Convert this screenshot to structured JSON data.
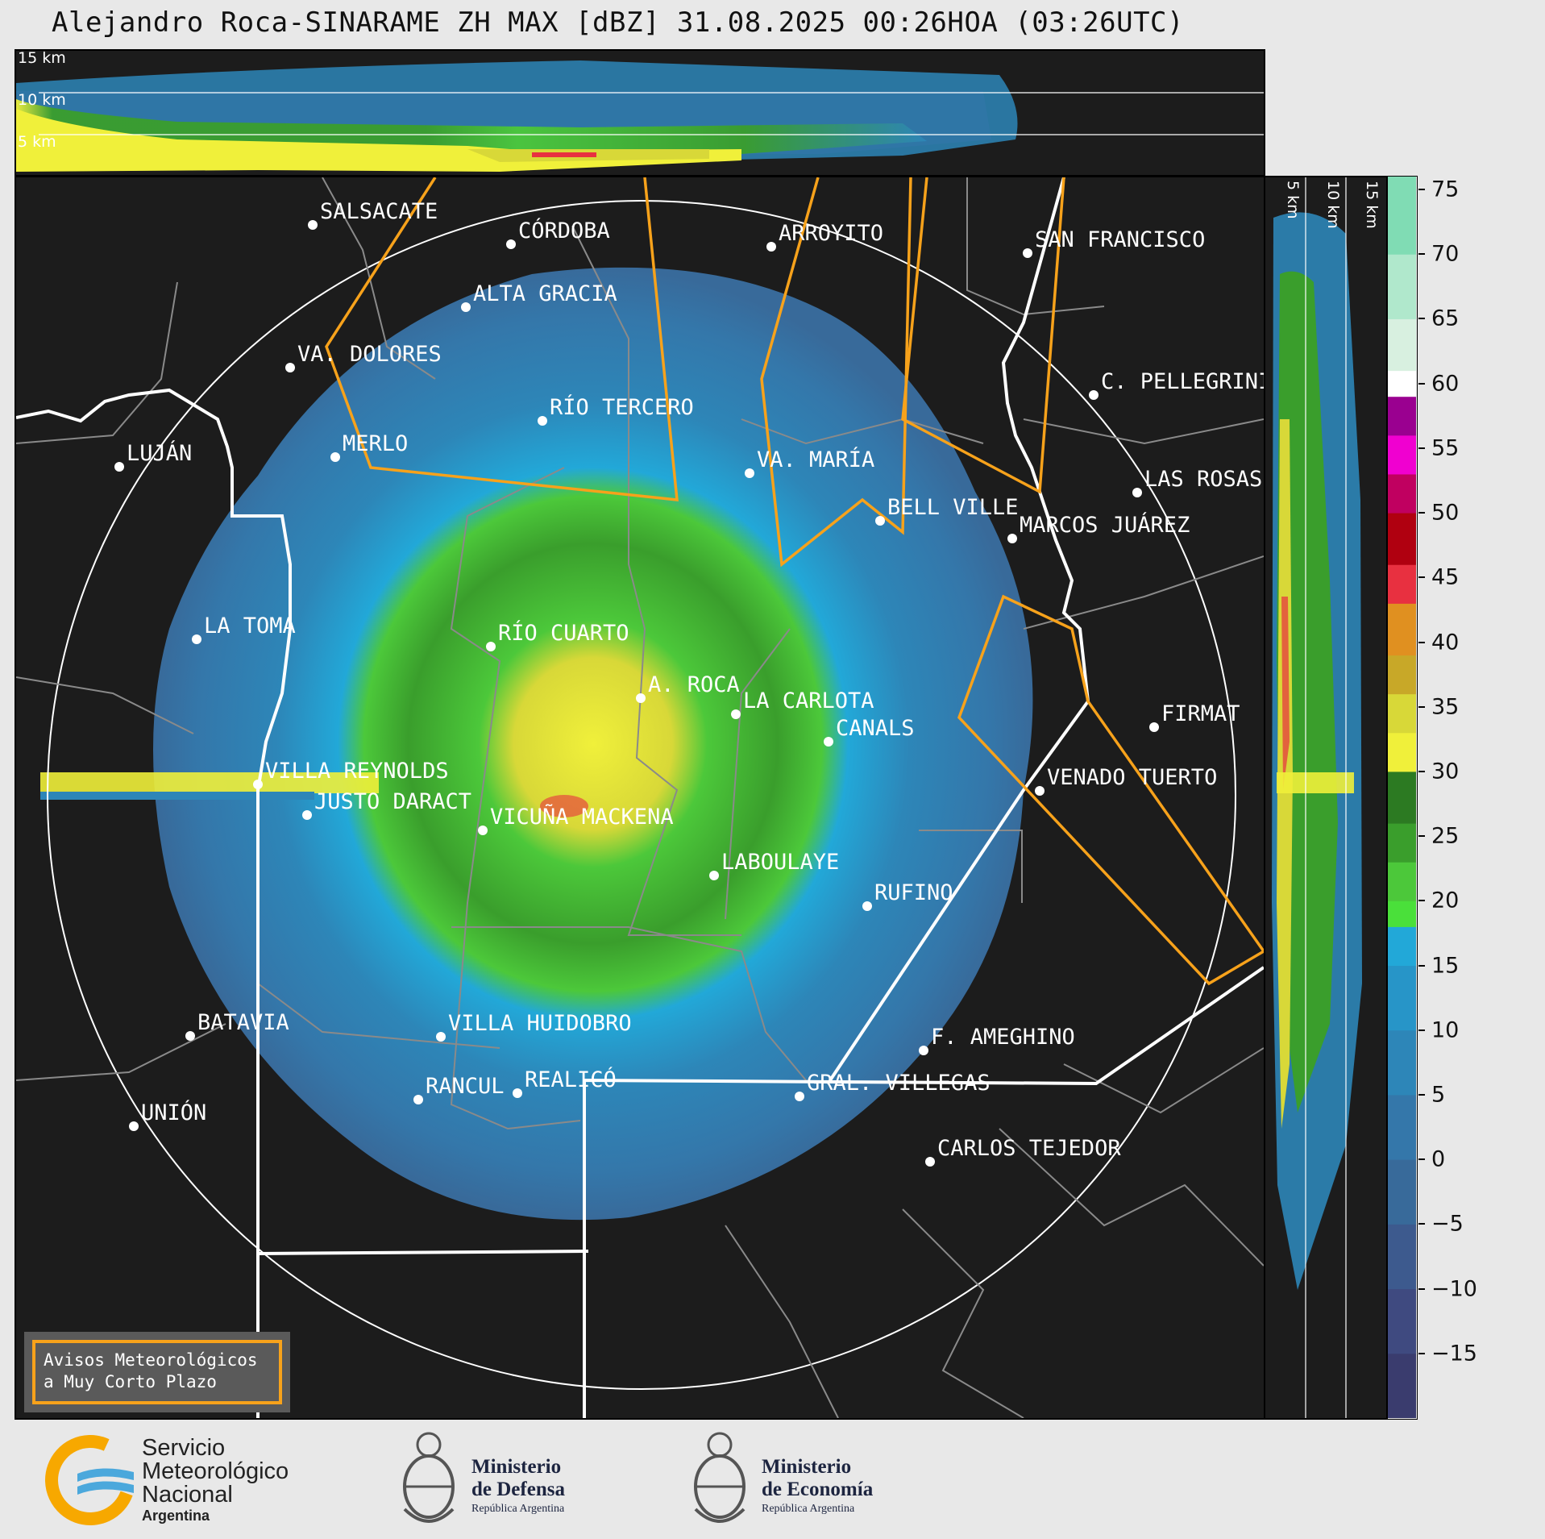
{
  "title": "Alejandro Roca-SINARAME ZH MAX [dBZ] 31.08.2025 00:26HOA (03:26UTC)",
  "top_panel": {
    "height_labels": [
      "15 km",
      "10 km",
      "5 km"
    ]
  },
  "side_panel": {
    "height_labels": [
      "5 km",
      "10 km",
      "15 km"
    ]
  },
  "colorbar": {
    "unit": "dBZ",
    "tick_labels": [
      "75",
      "70",
      "65",
      "60",
      "55",
      "50",
      "45",
      "40",
      "35",
      "30",
      "25",
      "20",
      "15",
      "10",
      "5",
      "0",
      "−5",
      "−10",
      "−15"
    ],
    "tick_values": [
      75,
      70,
      65,
      60,
      55,
      50,
      45,
      40,
      35,
      30,
      25,
      20,
      15,
      10,
      5,
      0,
      -5,
      -10,
      -15
    ],
    "range": [
      -20,
      76
    ],
    "bands": [
      {
        "from": -20,
        "to": -15,
        "color": "#3a3c6e"
      },
      {
        "from": -15,
        "to": -10,
        "color": "#3f4a80"
      },
      {
        "from": -10,
        "to": -5,
        "color": "#3d5a8e"
      },
      {
        "from": -5,
        "to": 0,
        "color": "#386a9a"
      },
      {
        "from": 0,
        "to": 5,
        "color": "#3477aa"
      },
      {
        "from": 5,
        "to": 10,
        "color": "#2d86b8"
      },
      {
        "from": 10,
        "to": 15,
        "color": "#2795c8"
      },
      {
        "from": 15,
        "to": 18,
        "color": "#22a8d8"
      },
      {
        "from": 18,
        "to": 20,
        "color": "#4ae03a"
      },
      {
        "from": 20,
        "to": 23,
        "color": "#4cc83a"
      },
      {
        "from": 23,
        "to": 26,
        "color": "#3a9e2c"
      },
      {
        "from": 26,
        "to": 30,
        "color": "#2c7a22"
      },
      {
        "from": 30,
        "to": 33,
        "color": "#f0f03a"
      },
      {
        "from": 33,
        "to": 36,
        "color": "#d8d838"
      },
      {
        "from": 36,
        "to": 39,
        "color": "#c8a828"
      },
      {
        "from": 39,
        "to": 43,
        "color": "#e09020"
      },
      {
        "from": 43,
        "to": 46,
        "color": "#e83040"
      },
      {
        "from": 46,
        "to": 50,
        "color": "#b00010"
      },
      {
        "from": 50,
        "to": 53,
        "color": "#c00060"
      },
      {
        "from": 53,
        "to": 56,
        "color": "#f000d0"
      },
      {
        "from": 56,
        "to": 59,
        "color": "#9a0090"
      },
      {
        "from": 59,
        "to": 61,
        "color": "#ffffff"
      },
      {
        "from": 61,
        "to": 65,
        "color": "#d8f0e0"
      },
      {
        "from": 65,
        "to": 70,
        "color": "#b0e8cc"
      },
      {
        "from": 70,
        "to": 76,
        "color": "#80dcb4"
      }
    ]
  },
  "cities": [
    {
      "name": "SALSACATE"
    },
    {
      "name": "CÓRDOBA"
    },
    {
      "name": "ARROYITO"
    },
    {
      "name": "SAN FRANCISCO"
    },
    {
      "name": "ALTA GRACIA"
    },
    {
      "name": "VA. DOLORES"
    },
    {
      "name": "C. PELLEGRINI"
    },
    {
      "name": "RÍO TERCERO"
    },
    {
      "name": "LUJÁN"
    },
    {
      "name": "MERLO"
    },
    {
      "name": "VA. MARÍA"
    },
    {
      "name": "LAS ROSAS"
    },
    {
      "name": "BELL VILLE"
    },
    {
      "name": "MARCOS JUÁREZ"
    },
    {
      "name": "LA TOMA"
    },
    {
      "name": "RÍO CUARTO"
    },
    {
      "name": "A. ROCA"
    },
    {
      "name": "LA CARLOTA"
    },
    {
      "name": "FIRMAT"
    },
    {
      "name": "CANALS"
    },
    {
      "name": "VILLA REYNOLDS"
    },
    {
      "name": "VENADO TUERTO"
    },
    {
      "name": "JUSTO DARACT"
    },
    {
      "name": "VICUÑA MACKENA"
    },
    {
      "name": "LABOULAYE"
    },
    {
      "name": "RUFINO"
    },
    {
      "name": "BATAVIA"
    },
    {
      "name": "VILLA HUIDOBRO"
    },
    {
      "name": "F. AMEGHINO"
    },
    {
      "name": "RANCUL"
    },
    {
      "name": "REALICÓ"
    },
    {
      "name": "GRAL. VILLEGAS"
    },
    {
      "name": "UNIÓN"
    },
    {
      "name": "CARLOS TEJEDOR"
    }
  ],
  "warning_box": {
    "line1": "Avisos Meteorológicos",
    "line2": "a Muy Corto Plazo"
  },
  "footer": {
    "smn": {
      "line1": "Servicio",
      "line2": "Meteorológico",
      "line3": "Nacional",
      "line4": "Argentina"
    },
    "defensa": {
      "line1": "Ministerio",
      "line2": "de Defensa",
      "line3": "República Argentina"
    },
    "economia": {
      "line1": "Ministerio",
      "line2": "de Economía",
      "line3": "República Argentina"
    }
  }
}
